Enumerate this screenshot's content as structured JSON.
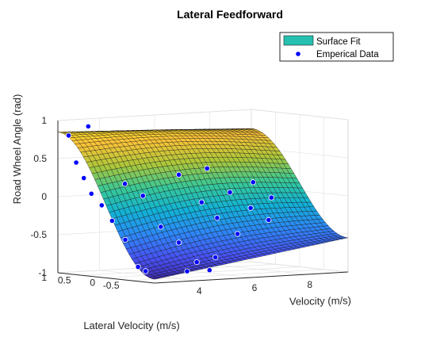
{
  "chart_data": {
    "type": "surface",
    "title": "Lateral Feedforward",
    "xlabel": "Velocity (m/s)",
    "ylabel": "Lateral Velocity (m/s)",
    "zlabel": "Road Wheel Angle (rad)",
    "x_ticks": [
      "4",
      "6",
      "8"
    ],
    "y_ticks": [
      "1",
      "0.5",
      "0",
      "-0.5"
    ],
    "z_ticks": [
      "1",
      "0.5",
      "0",
      "-0.5",
      "-1"
    ],
    "xlim": [
      2.5,
      9.5
    ],
    "ylim": [
      -1,
      1
    ],
    "zlim": [
      -1,
      1
    ],
    "grid": true,
    "legend_position": "top-right",
    "legend": [
      {
        "label": "Surface Fit",
        "color": "#26bfb0",
        "marker": "patch"
      },
      {
        "label": "Emperical Data",
        "color": "#0000ff",
        "marker": "dot"
      }
    ],
    "surface": {
      "colormap": "parula",
      "corner_values": {
        "low_v_high_lat": 0.85,
        "high_v_high_lat": 0.75,
        "low_v_low_lat": -0.95,
        "high_v_low_lat": -0.55
      }
    },
    "series": [
      {
        "name": "Emperical Data",
        "points": [
          [
            2.8,
            0.95,
            0.8
          ],
          [
            2.9,
            0.85,
            0.45
          ],
          [
            3.0,
            0.75,
            0.25
          ],
          [
            3.1,
            0.65,
            0.05
          ],
          [
            3.3,
            0.55,
            -0.1
          ],
          [
            3.5,
            0.45,
            -0.3
          ],
          [
            3.8,
            0.35,
            -0.55
          ],
          [
            4.0,
            0.2,
            -0.9
          ],
          [
            4.1,
            0.1,
            -0.95
          ],
          [
            3.6,
            1.0,
            0.9
          ],
          [
            4.4,
            0.7,
            0.15
          ],
          [
            4.7,
            0.5,
            0.0
          ],
          [
            5.0,
            0.3,
            -0.4
          ],
          [
            5.3,
            0.1,
            -0.6
          ],
          [
            5.6,
            -0.1,
            -0.85
          ],
          [
            5.8,
            -0.25,
            -0.95
          ],
          [
            6.0,
            0.5,
            0.25
          ],
          [
            6.3,
            0.2,
            -0.1
          ],
          [
            6.6,
            0.05,
            -0.3
          ],
          [
            6.9,
            -0.2,
            -0.5
          ],
          [
            7.2,
            0.6,
            0.3
          ],
          [
            7.5,
            0.3,
            0.0
          ],
          [
            7.9,
            0.1,
            -0.2
          ],
          [
            8.2,
            -0.1,
            -0.35
          ],
          [
            8.6,
            0.45,
            0.1
          ],
          [
            9.0,
            0.3,
            -0.1
          ],
          [
            4.2,
            -0.7,
            -0.9
          ],
          [
            5.4,
            -0.6,
            -0.75
          ]
        ]
      }
    ]
  }
}
